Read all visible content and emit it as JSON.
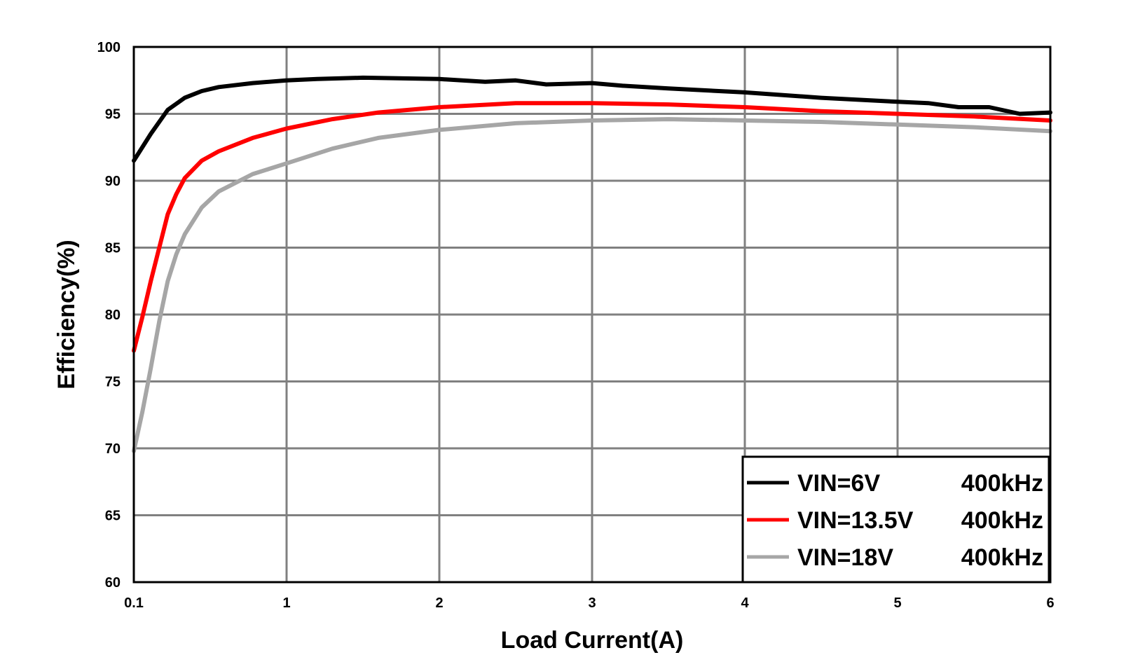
{
  "chart_data": {
    "type": "line",
    "xlabel": "Load Current(A)",
    "ylabel": "Efficiency(%)",
    "xlim": [
      0.1,
      6
    ],
    "ylim": [
      60,
      100
    ],
    "x_ticks": [
      {
        "value": 0.1,
        "label": "0.1"
      },
      {
        "value": 1,
        "label": "1"
      },
      {
        "value": 2,
        "label": "2"
      },
      {
        "value": 3,
        "label": "3"
      },
      {
        "value": 4,
        "label": "4"
      },
      {
        "value": 5,
        "label": "5"
      },
      {
        "value": 6,
        "label": "6"
      }
    ],
    "y_ticks": [
      {
        "value": 60,
        "label": "60"
      },
      {
        "value": 65,
        "label": "65"
      },
      {
        "value": 70,
        "label": "70"
      },
      {
        "value": 75,
        "label": "75"
      },
      {
        "value": 80,
        "label": "80"
      },
      {
        "value": 85,
        "label": "85"
      },
      {
        "value": 90,
        "label": "90"
      },
      {
        "value": 95,
        "label": "95"
      },
      {
        "value": 100,
        "label": "100"
      }
    ],
    "grid": true,
    "legend_position": "bottom-right",
    "series": [
      {
        "name": "VIN=6V",
        "freq": "400kHz",
        "color": "#000000",
        "x": [
          0.1,
          0.2,
          0.3,
          0.4,
          0.5,
          0.6,
          0.8,
          1.0,
          1.2,
          1.5,
          2.0,
          2.3,
          2.5,
          2.7,
          3.0,
          3.2,
          3.5,
          4.0,
          4.5,
          5.0,
          5.2,
          5.4,
          5.6,
          5.8,
          6.0
        ],
        "y": [
          91.5,
          93.5,
          95.3,
          96.2,
          96.7,
          97.0,
          97.3,
          97.5,
          97.6,
          97.7,
          97.6,
          97.4,
          97.5,
          97.2,
          97.3,
          97.1,
          96.9,
          96.6,
          96.2,
          95.9,
          95.8,
          95.5,
          95.5,
          95.0,
          95.1
        ]
      },
      {
        "name": "VIN=13.5V",
        "freq": "400kHz",
        "color": "#ff0000",
        "x": [
          0.1,
          0.15,
          0.2,
          0.25,
          0.3,
          0.35,
          0.4,
          0.5,
          0.6,
          0.8,
          1.0,
          1.3,
          1.6,
          2.0,
          2.5,
          3.0,
          3.5,
          4.0,
          4.5,
          5.0,
          5.5,
          6.0
        ],
        "y": [
          77.3,
          79.8,
          82.5,
          85.0,
          87.5,
          89.0,
          90.2,
          91.5,
          92.2,
          93.2,
          93.9,
          94.6,
          95.1,
          95.5,
          95.8,
          95.8,
          95.7,
          95.5,
          95.2,
          95.0,
          94.8,
          94.5
        ]
      },
      {
        "name": "VIN=18V",
        "freq": "400kHz",
        "color": "#a6a6a6",
        "x": [
          0.1,
          0.15,
          0.2,
          0.25,
          0.3,
          0.35,
          0.4,
          0.5,
          0.6,
          0.8,
          1.0,
          1.3,
          1.6,
          2.0,
          2.5,
          3.0,
          3.5,
          4.0,
          4.5,
          5.0,
          5.5,
          6.0
        ],
        "y": [
          69.8,
          72.7,
          76.0,
          79.5,
          82.5,
          84.5,
          86.0,
          88.0,
          89.2,
          90.5,
          91.3,
          92.4,
          93.2,
          93.8,
          94.3,
          94.5,
          94.6,
          94.5,
          94.4,
          94.2,
          94.0,
          93.7
        ]
      }
    ]
  }
}
